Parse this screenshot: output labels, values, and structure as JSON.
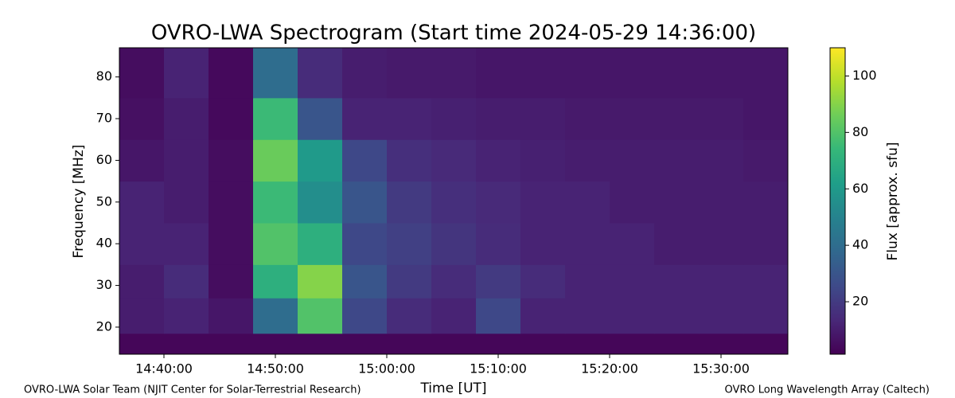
{
  "chart_data": {
    "type": "heatmap",
    "title": "OVRO-LWA Spectrogram (Start time 2024-05-29 14:36:00)",
    "x_label": "Time [UT]",
    "y_label": "Frequency [MHz]",
    "colorbar_label": "Flux [approx. sfu]",
    "colormap": "viridis",
    "xlim": [
      "14:36:00",
      "15:36:00"
    ],
    "xticks": [
      "14:40:00",
      "14:50:00",
      "15:00:00",
      "15:10:00",
      "15:20:00",
      "15:30:00"
    ],
    "ylim": [
      13.5,
      87
    ],
    "yticks": [
      20,
      30,
      40,
      50,
      60,
      70,
      80
    ],
    "clim": [
      1.4,
      110
    ],
    "cticks": [
      20,
      40,
      60,
      80,
      100
    ],
    "x_bins": [
      "14:36:00",
      "14:40:00",
      "14:44:00",
      "14:48:00",
      "14:52:00",
      "14:56:00",
      "15:00:00",
      "15:04:00",
      "15:08:00",
      "15:12:00",
      "15:16:00",
      "15:20:00",
      "15:24:00",
      "15:28:00",
      "15:32:00",
      "15:36:00"
    ],
    "y_bins": [
      13.5,
      18.5,
      27,
      35,
      45,
      55,
      65,
      75,
      87
    ],
    "z": [
      [
        3,
        3,
        3,
        3,
        3,
        3,
        3,
        3,
        3,
        3,
        3,
        3,
        3,
        3,
        3
      ],
      [
        10,
        12,
        8,
        40,
        80,
        25,
        15,
        12,
        25,
        12,
        12,
        12,
        12,
        12,
        12
      ],
      [
        10,
        15,
        5,
        70,
        90,
        30,
        20,
        15,
        20,
        15,
        12,
        12,
        12,
        12,
        12
      ],
      [
        12,
        12,
        5,
        80,
        70,
        25,
        22,
        18,
        15,
        12,
        12,
        12,
        10,
        10,
        10
      ],
      [
        12,
        10,
        5,
        75,
        55,
        30,
        20,
        16,
        14,
        12,
        12,
        10,
        10,
        10,
        10
      ],
      [
        8,
        10,
        5,
        85,
        60,
        25,
        16,
        14,
        12,
        11,
        10,
        10,
        10,
        10,
        9
      ],
      [
        6,
        10,
        4,
        75,
        30,
        12,
        12,
        11,
        10,
        10,
        9,
        9,
        9,
        9,
        8
      ],
      [
        5,
        12,
        4,
        40,
        15,
        10,
        9,
        9,
        8,
        8,
        8,
        8,
        8,
        8,
        8
      ]
    ],
    "footer_left": "OVRO-LWA Solar Team (NJIT Center for Solar-Terrestrial Research)",
    "footer_right": "OVRO Long Wavelength Array (Caltech)"
  }
}
